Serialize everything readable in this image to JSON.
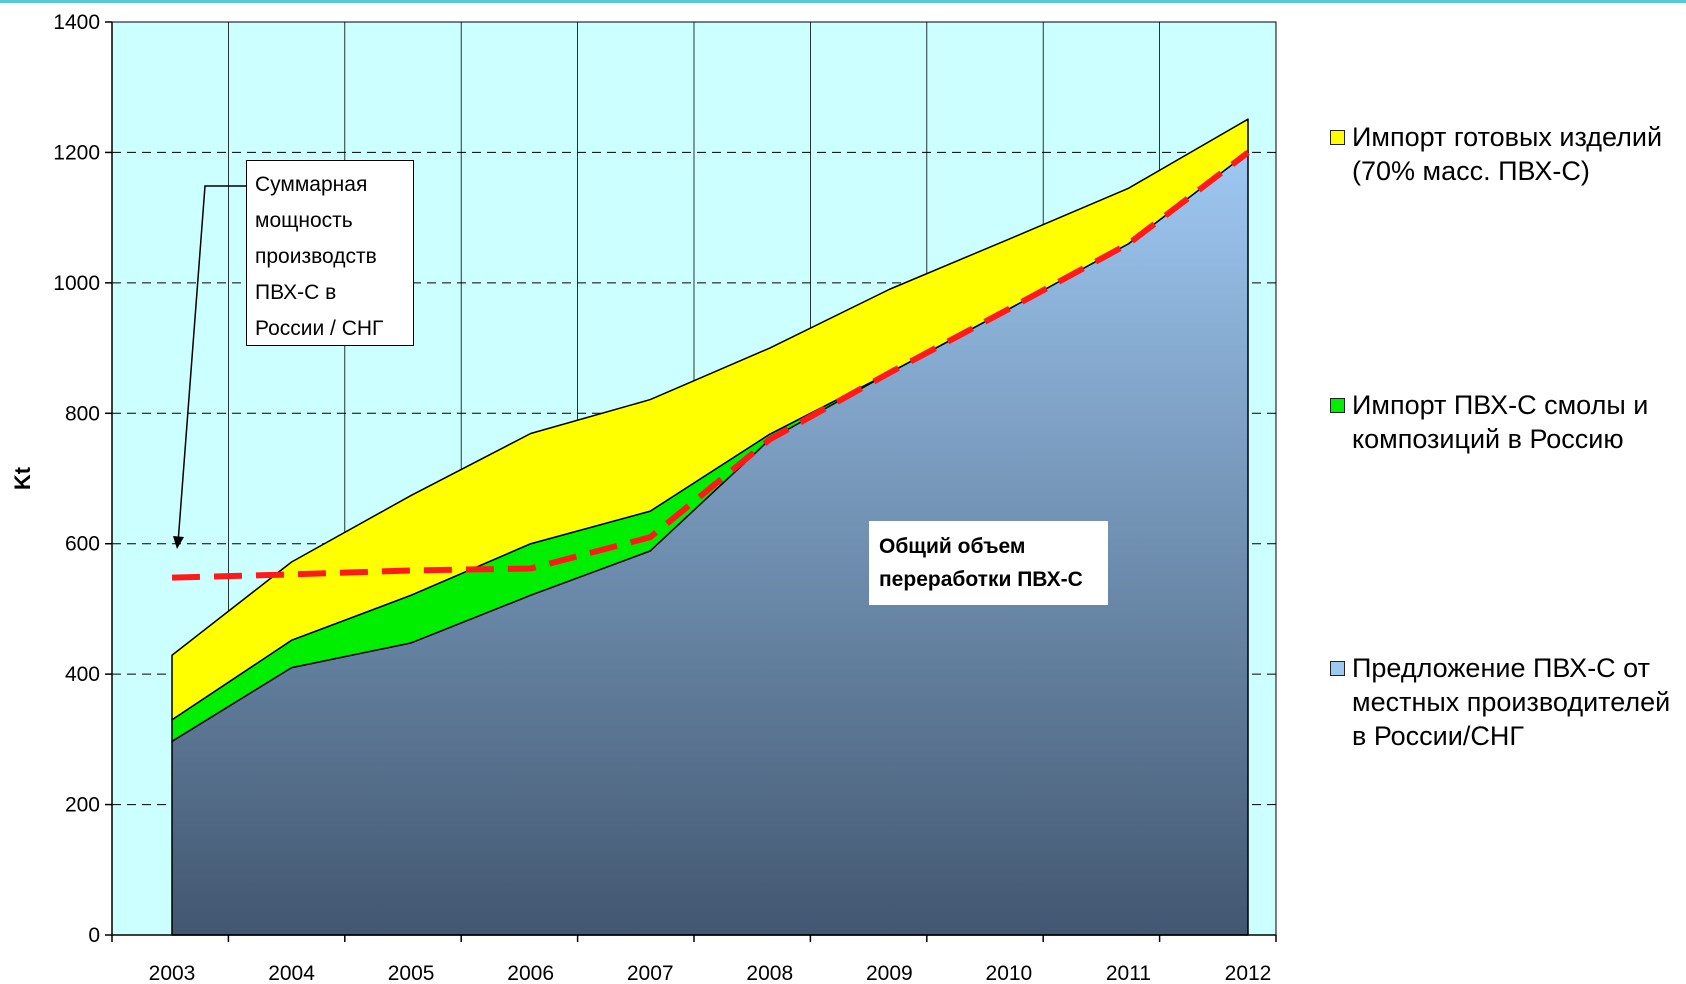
{
  "chart_data": {
    "type": "area",
    "stacked": true,
    "x": [
      "2003",
      "2004",
      "2005",
      "2006",
      "2007",
      "2008",
      "2009",
      "2010",
      "2011",
      "2012"
    ],
    "series": [
      {
        "name": "Предложение ПВХ-С от местных производителей в России/СНГ",
        "values": [
          297,
          410,
          448,
          521,
          589,
          760,
          862,
          960,
          1060,
          1200
        ],
        "color": "#9ec8f2",
        "gradient_bottom": "#425770"
      },
      {
        "name": "Импорт ПВХ-С смолы и композиций в Россию",
        "values": [
          33,
          42,
          73,
          79,
          61,
          8,
          0,
          0,
          0,
          0
        ],
        "color": "#00ee00"
      },
      {
        "name": "Импорт готовых изделий (70% масс. ПВХ-С)",
        "values": [
          99,
          120,
          153,
          169,
          171,
          132,
          128,
          107,
          85,
          51
        ],
        "color": "#ffff00"
      }
    ],
    "overlay_line": {
      "style": "dashed",
      "color": "#ff1a1a",
      "values": [
        548,
        553,
        559,
        562,
        610,
        760,
        862,
        960,
        1060,
        1200
      ]
    },
    "ylabel": "Kt",
    "xlabel": "",
    "ylim": [
      0,
      1400
    ],
    "yticks": [
      "0",
      "200",
      "400",
      "600",
      "800",
      "1000",
      "1200",
      "1400"
    ],
    "grid": true,
    "plot_background": "#ccffff",
    "legend_position": "right",
    "legend": [
      {
        "lines": [
          "Импорт готовых изделий",
          "(70% масс. ПВХ-С)"
        ],
        "color": "#ffff00"
      },
      {
        "lines": [
          "Импорт ПВХ-С смолы и",
          "композиций в Россию"
        ],
        "color": "#00ee00"
      },
      {
        "lines": [
          "Предложение ПВХ-С от",
          "местных производителей",
          "в России/СНГ"
        ],
        "color": "#9ec8f2"
      }
    ],
    "annotations": {
      "capacity_callout": [
        "Суммарная",
        "мощность",
        "производств",
        "ПВХ-С  в",
        "России / СНГ"
      ],
      "total_label": [
        "Общий объем",
        "переработки ПВХ-С"
      ]
    }
  }
}
